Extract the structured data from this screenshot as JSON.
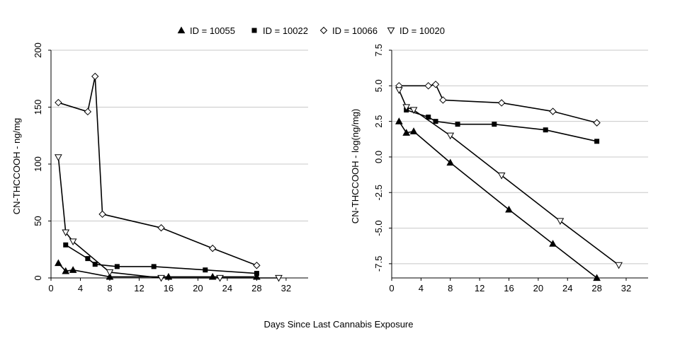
{
  "legend": {
    "items": [
      {
        "label": "ID = 10055",
        "marker": "triangle-up-filled"
      },
      {
        "label": "ID = 10022",
        "marker": "square-filled"
      },
      {
        "label": "ID = 10066",
        "marker": "diamond-open"
      },
      {
        "label": "ID = 10020",
        "marker": "triangle-down-open"
      }
    ]
  },
  "shared_xlabel": "Days Since Last Cannabis Exposure",
  "chart_data": [
    {
      "type": "line",
      "ylabel": "CN-THCCOOH - ng/mg",
      "xlim": [
        0,
        35
      ],
      "ylim": [
        0,
        200
      ],
      "xticks": [
        0,
        4,
        8,
        12,
        16,
        20,
        24,
        28,
        32
      ],
      "xtick_labels": [
        "0",
        "4",
        "8",
        "12",
        "16",
        "20",
        "24",
        "28",
        "32"
      ],
      "yticks": [
        0,
        50,
        100,
        150,
        200
      ],
      "ytick_labels": [
        "0",
        "50",
        "100",
        "150",
        "200"
      ],
      "grid": "horizontal",
      "series": [
        {
          "name": "ID = 10055",
          "marker": "triangle-up-filled",
          "x": [
            1,
            2,
            3,
            8,
            16,
            22,
            28
          ],
          "y": [
            13,
            6,
            7,
            1,
            1,
            1,
            1
          ]
        },
        {
          "name": "ID = 10022",
          "marker": "square-filled",
          "x": [
            2,
            5,
            6,
            9,
            14,
            21,
            28
          ],
          "y": [
            29,
            17,
            12,
            10,
            10,
            7,
            4
          ]
        },
        {
          "name": "ID = 10066",
          "marker": "diamond-open",
          "x": [
            1,
            5,
            6,
            7,
            15,
            22,
            28
          ],
          "y": [
            154,
            146,
            177,
            56,
            44,
            26,
            11
          ]
        },
        {
          "name": "ID = 10020",
          "marker": "triangle-down-open",
          "x": [
            1,
            2,
            3,
            8,
            15,
            23,
            31
          ],
          "y": [
            106,
            40,
            32,
            5,
            0,
            0,
            0
          ]
        }
      ]
    },
    {
      "type": "line",
      "ylabel": "CN-THCCOOH - log(ng/mg)",
      "xlim": [
        0,
        35
      ],
      "ylim": [
        -8.5,
        7.5
      ],
      "xticks": [
        0,
        4,
        8,
        12,
        16,
        20,
        24,
        28,
        32
      ],
      "xtick_labels": [
        "0",
        "4",
        "8",
        "12",
        "16",
        "20",
        "24",
        "28",
        "32"
      ],
      "yticks": [
        -7.5,
        -5.0,
        -2.5,
        0.0,
        2.5,
        5.0,
        7.5
      ],
      "ytick_labels": [
        "-7.5",
        "-5.0",
        "-2.5",
        "0.0",
        "2.5",
        "5.0",
        "7.5"
      ],
      "grid": "horizontal",
      "series": [
        {
          "name": "ID = 10055",
          "marker": "triangle-up-filled",
          "x": [
            1,
            2,
            3,
            8,
            16,
            22,
            28
          ],
          "y": [
            2.5,
            1.7,
            1.8,
            -0.4,
            -3.7,
            -6.1,
            -8.5
          ]
        },
        {
          "name": "ID = 10022",
          "marker": "square-filled",
          "x": [
            2,
            5,
            6,
            9,
            14,
            21,
            28
          ],
          "y": [
            3.3,
            2.8,
            2.5,
            2.3,
            2.3,
            1.9,
            1.1
          ]
        },
        {
          "name": "ID = 10066",
          "marker": "diamond-open",
          "x": [
            1,
            5,
            6,
            7,
            15,
            22,
            28
          ],
          "y": [
            5.0,
            5.0,
            5.1,
            4.0,
            3.8,
            3.2,
            2.4
          ]
        },
        {
          "name": "ID = 10020",
          "marker": "triangle-down-open",
          "x": [
            1,
            2,
            3,
            8,
            15,
            23,
            31
          ],
          "y": [
            4.7,
            3.5,
            3.3,
            1.5,
            -1.3,
            -4.5,
            -7.6
          ]
        }
      ]
    }
  ]
}
